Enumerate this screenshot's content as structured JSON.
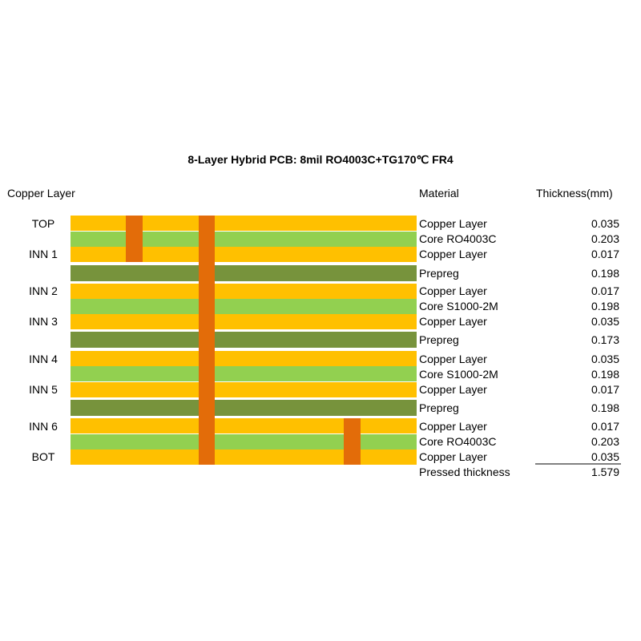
{
  "title": "8-Layer Hybrid PCB: 8mil RO4003C+TG170℃ FR4",
  "headers": {
    "copper_layer": "Copper Layer",
    "material": "Material",
    "thickness": "Thickness(mm)"
  },
  "colors": {
    "copper": "#ffc000",
    "core": "#92d050",
    "prepreg": "#77933c",
    "via": "#e36c09"
  },
  "stack": [
    {
      "type": "copper",
      "layer": "TOP",
      "material": "Copper Layer",
      "thickness": "0.035"
    },
    {
      "type": "core",
      "layer": "",
      "material": "Core RO4003C",
      "thickness": "0.203"
    },
    {
      "type": "copper",
      "layer": "INN 1",
      "material": "Copper Layer",
      "thickness": "0.017"
    },
    {
      "type": "prepreg",
      "layer": "",
      "material": "Prepreg",
      "thickness": "0.198"
    },
    {
      "type": "copper",
      "layer": "INN 2",
      "material": "Copper Layer",
      "thickness": "0.017"
    },
    {
      "type": "core",
      "layer": "",
      "material": "Core S1000-2M",
      "thickness": "0.198"
    },
    {
      "type": "copper",
      "layer": "INN 3",
      "material": "Copper Layer",
      "thickness": "0.035"
    },
    {
      "type": "prepreg",
      "layer": "",
      "material": "Prepreg",
      "thickness": "0.173"
    },
    {
      "type": "copper",
      "layer": "INN 4",
      "material": "Copper Layer",
      "thickness": "0.035"
    },
    {
      "type": "core",
      "layer": "",
      "material": "Core S1000-2M",
      "thickness": "0.198"
    },
    {
      "type": "copper",
      "layer": "INN 5",
      "material": "Copper Layer",
      "thickness": "0.017"
    },
    {
      "type": "prepreg",
      "layer": "",
      "material": "Prepreg",
      "thickness": "0.198"
    },
    {
      "type": "copper",
      "layer": "INN 6",
      "material": "Copper Layer",
      "thickness": "0.017"
    },
    {
      "type": "core",
      "layer": "",
      "material": "Core RO4003C",
      "thickness": "0.203"
    },
    {
      "type": "copper",
      "layer": "BOT",
      "material": "Copper Layer",
      "thickness": "0.035"
    }
  ],
  "vias": [
    {
      "name": "blind-via-top",
      "from": "TOP",
      "to": "INN 1"
    },
    {
      "name": "through-via",
      "from": "TOP",
      "to": "BOT"
    },
    {
      "name": "blind-via-bot",
      "from": "INN 6",
      "to": "BOT"
    }
  ],
  "total": {
    "label": "Pressed thickness",
    "value": "1.579"
  }
}
